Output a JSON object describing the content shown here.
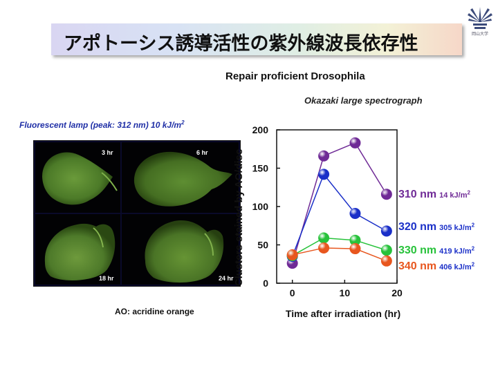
{
  "slide": {
    "title": "アポトーシス誘導活性の紫外線波長依存性",
    "logo_text": "岡山大学",
    "subtitle": "Repair proficient Drosophila",
    "source_label": "Okazaki large spectrograph",
    "lamp_label": "Fluorescent lamp (peak: 312 nm) 10 kJ/m",
    "lamp_sup": "2",
    "ao_label": "AO: acridine orange"
  },
  "micrographs": [
    {
      "label": "3 hr"
    },
    {
      "label": "6 hr"
    },
    {
      "label": "18 hr"
    },
    {
      "label": "24 hr"
    }
  ],
  "chart_data": {
    "type": "line",
    "xlabel": "Time after irradiation (hr)",
    "ylabel": "Clusters stained by AO/disc",
    "xlim": [
      -3,
      20
    ],
    "ylim": [
      0,
      200
    ],
    "xticks": [
      0,
      10,
      20
    ],
    "yticks": [
      0,
      50,
      100,
      150,
      200
    ],
    "grid": false,
    "legend_position": "right",
    "series": [
      {
        "name": "310 nm",
        "dose": "14 kJ/m",
        "dose_sup": "2",
        "color": "#6f2a96",
        "x": [
          0,
          6,
          12,
          18
        ],
        "y": [
          26,
          166,
          183,
          116
        ]
      },
      {
        "name": "320 nm",
        "dose": "305 kJ/m",
        "dose_sup": "2",
        "color": "#1a2fc8",
        "x": [
          0,
          6,
          12,
          18
        ],
        "y": [
          35,
          142,
          91,
          68
        ]
      },
      {
        "name": "330 nm",
        "dose": "419 kJ/m",
        "dose_sup": "2",
        "color": "#27c23a",
        "x": [
          0,
          6,
          12,
          18
        ],
        "y": [
          36,
          59,
          56,
          43
        ]
      },
      {
        "name": "340 nm",
        "dose": "406 kJ/m",
        "dose_sup": "2",
        "color": "#e8561e",
        "x": [
          0,
          6,
          12,
          18
        ],
        "y": [
          37,
          46,
          45,
          29
        ]
      }
    ]
  }
}
